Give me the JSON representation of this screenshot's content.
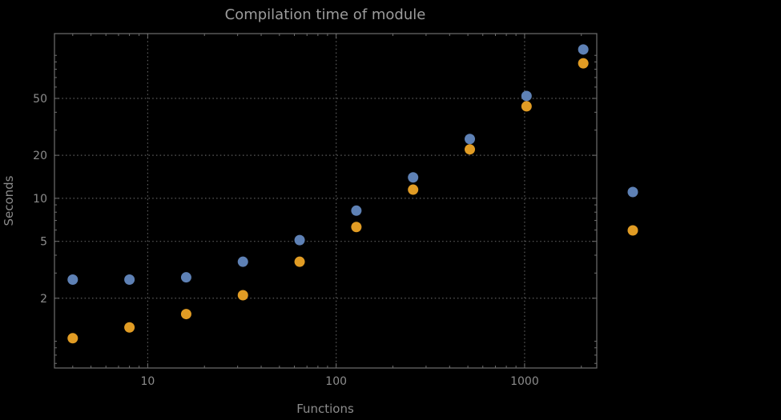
{
  "page": {
    "background_color": "#000000"
  },
  "style": {
    "frame_color": "#6e6e6e",
    "grid_color": "#5e5e5e",
    "tick_label_color": "#8c8c8c",
    "axis_label_color": "#8c8c8c",
    "title_color": "#9c9c9c"
  },
  "chart_data": {
    "type": "scatter",
    "title": "Compilation time of module",
    "xlabel": "Functions",
    "ylabel": "Seconds",
    "x_scale": "log",
    "y_scale": "log",
    "x_range": [
      3.2,
      2415
    ],
    "y_range": [
      0.65,
      142
    ],
    "x_ticks": [
      10,
      100,
      1000
    ],
    "x_tick_labels": [
      "10",
      "100",
      "1000"
    ],
    "y_ticks": [
      2,
      5,
      10,
      20,
      50
    ],
    "y_tick_labels": [
      "2",
      "5",
      "10",
      "20",
      "50"
    ],
    "grid": "dotted",
    "legend_position": "right-outside",
    "series": [
      {
        "name": "series-1-blue",
        "color": "#5E81B5",
        "points": [
          [
            4,
            2.7
          ],
          [
            8,
            2.7
          ],
          [
            16,
            2.8
          ],
          [
            32,
            3.6
          ],
          [
            64,
            5.1
          ],
          [
            128,
            8.2
          ],
          [
            256,
            14
          ],
          [
            512,
            26
          ],
          [
            1024,
            52
          ],
          [
            2048,
            110
          ]
        ]
      },
      {
        "name": "series-2-orange",
        "color": "#E19C24",
        "points": [
          [
            4,
            1.05
          ],
          [
            8,
            1.25
          ],
          [
            16,
            1.55
          ],
          [
            32,
            2.1
          ],
          [
            64,
            3.6
          ],
          [
            128,
            6.3
          ],
          [
            256,
            11.5
          ],
          [
            512,
            22
          ],
          [
            1024,
            44
          ],
          [
            2048,
            88
          ]
        ]
      }
    ],
    "legend_markers": [
      {
        "name": "legend-marker-series-1",
        "color": "#5E81B5"
      },
      {
        "name": "legend-marker-series-2",
        "color": "#E19C24"
      }
    ]
  }
}
